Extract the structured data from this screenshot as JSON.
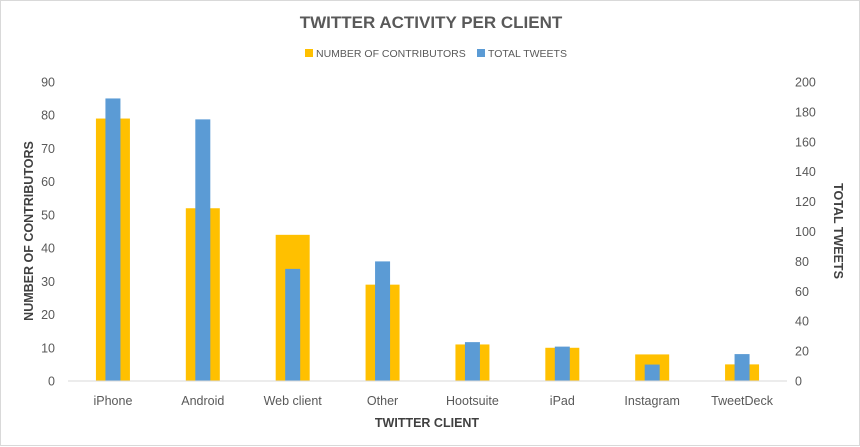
{
  "chart_data": {
    "type": "bar",
    "title": "TWITTER ACTIVITY PER CLIENT",
    "xlabel": "TWITTER CLIENT",
    "ylabel": "NUMBER OF CONTRIBUTORS",
    "y2label": "TOTAL TWEETS",
    "categories": [
      "iPhone",
      "Android",
      "Web client",
      "Other",
      "Hootsuite",
      "iPad",
      "Instagram",
      "TweetDeck"
    ],
    "series": [
      {
        "name": "NUMBER OF CONTRIBUTORS",
        "axis": "left",
        "color": "#FFC000",
        "values": [
          79,
          52,
          44,
          29,
          11,
          10,
          8,
          5
        ]
      },
      {
        "name": "TOTAL TWEETS",
        "axis": "right",
        "color": "#5B9BD5",
        "values": [
          189,
          175,
          75,
          80,
          26,
          23,
          11,
          18
        ]
      }
    ],
    "ylim": [
      0,
      90
    ],
    "y2lim": [
      0,
      200
    ],
    "yticks": [
      0,
      10,
      20,
      30,
      40,
      50,
      60,
      70,
      80,
      90
    ],
    "y2ticks": [
      0,
      20,
      40,
      60,
      80,
      100,
      120,
      140,
      160,
      180,
      200
    ],
    "legend_position": "top",
    "grid": false
  }
}
